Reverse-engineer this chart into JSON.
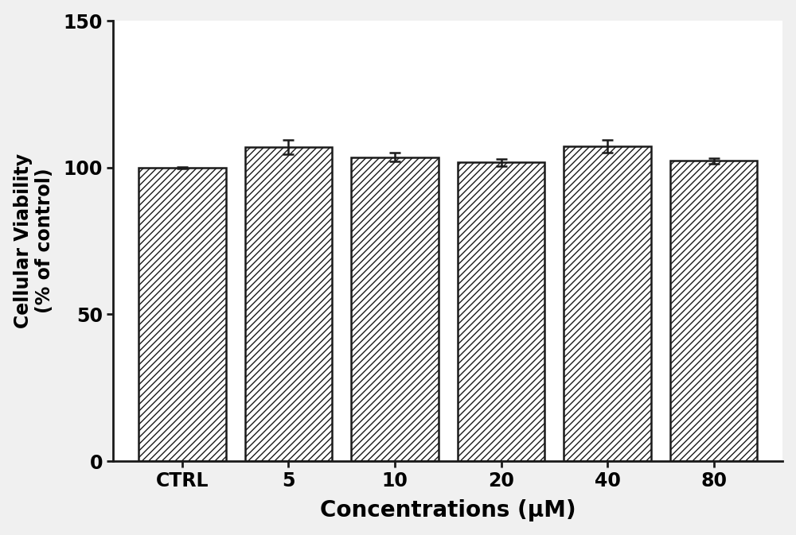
{
  "categories": [
    "CTRL",
    "5",
    "10",
    "20",
    "40",
    "80"
  ],
  "values": [
    100.0,
    107.0,
    103.5,
    101.8,
    107.2,
    102.3
  ],
  "errors": [
    0.3,
    2.5,
    1.5,
    1.2,
    2.2,
    1.0
  ],
  "xlabel": "Concentrations (μM)",
  "ylabel": "Cellular Viability\n(% of control)",
  "ylim": [
    0,
    150
  ],
  "yticks": [
    0,
    50,
    100,
    150
  ],
  "bar_color": "#ffffff",
  "bar_edgecolor": "#1a1a1a",
  "hatch": "////",
  "bar_width": 0.82,
  "figsize": [
    10.0,
    6.73
  ],
  "dpi": 100,
  "xlabel_fontsize": 20,
  "ylabel_fontsize": 17,
  "tick_fontsize": 17,
  "xlabel_fontweight": "bold",
  "ylabel_fontweight": "bold",
  "tick_fontweight": "bold",
  "capsize": 5,
  "elinewidth": 1.8,
  "capthick": 1.8,
  "spine_linewidth": 2.0,
  "bar_linewidth": 1.8,
  "background_color": "#f0f0f0",
  "plot_bg_color": "#ffffff"
}
